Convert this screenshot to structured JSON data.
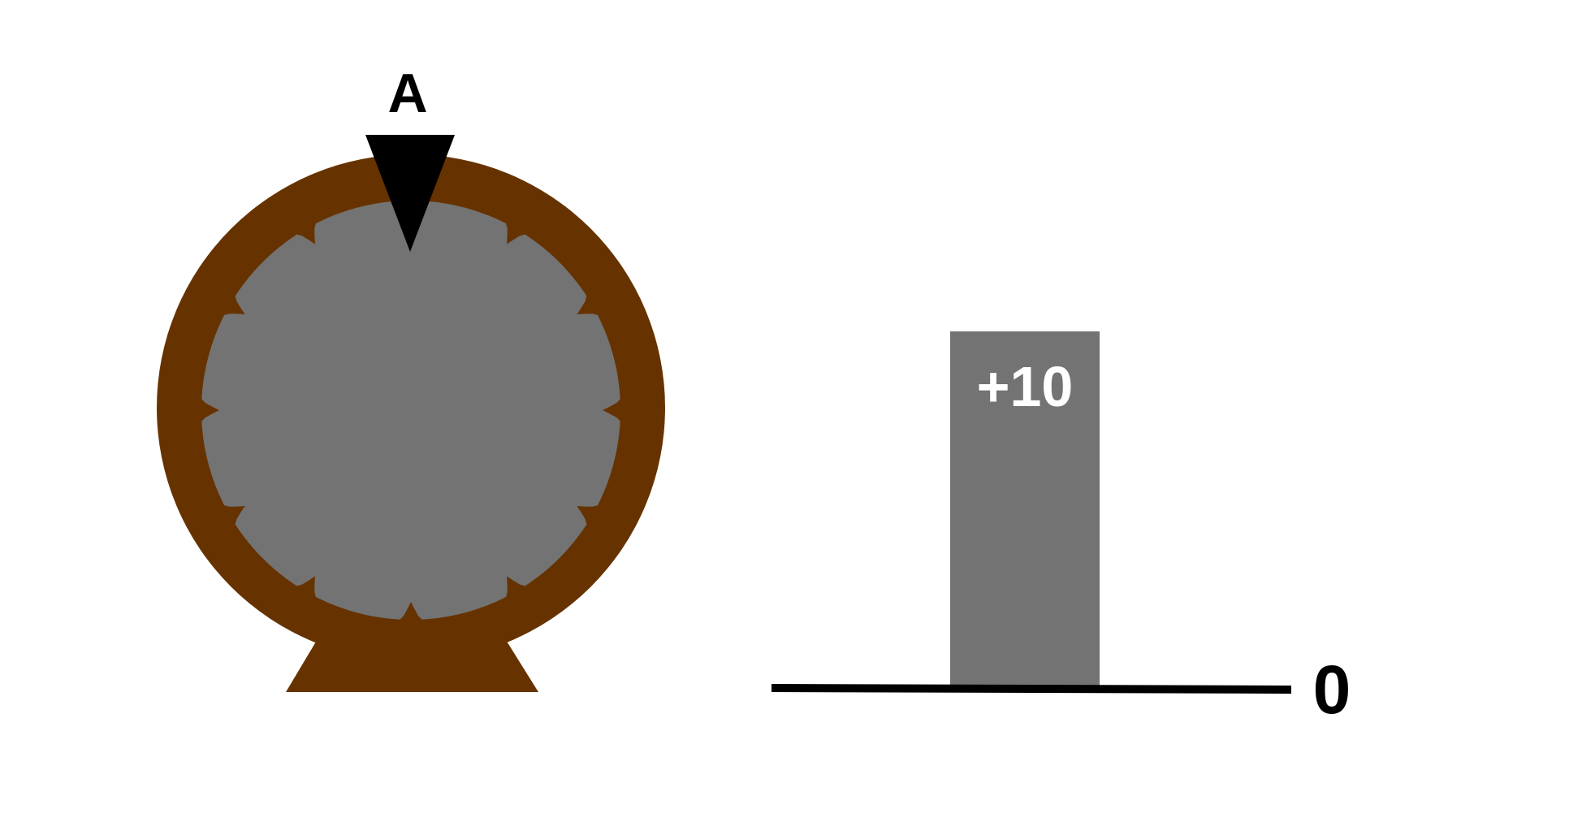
{
  "wheel": {
    "pointer_label": "A",
    "rim_color": "#663300",
    "face_color": "#737373",
    "pointer_color": "#000000"
  },
  "bar": {
    "value_label": "+10",
    "bar_color": "#737373",
    "label_color": "#ffffff"
  },
  "baseline": {
    "zero_label": "0",
    "line_color": "#000000"
  }
}
